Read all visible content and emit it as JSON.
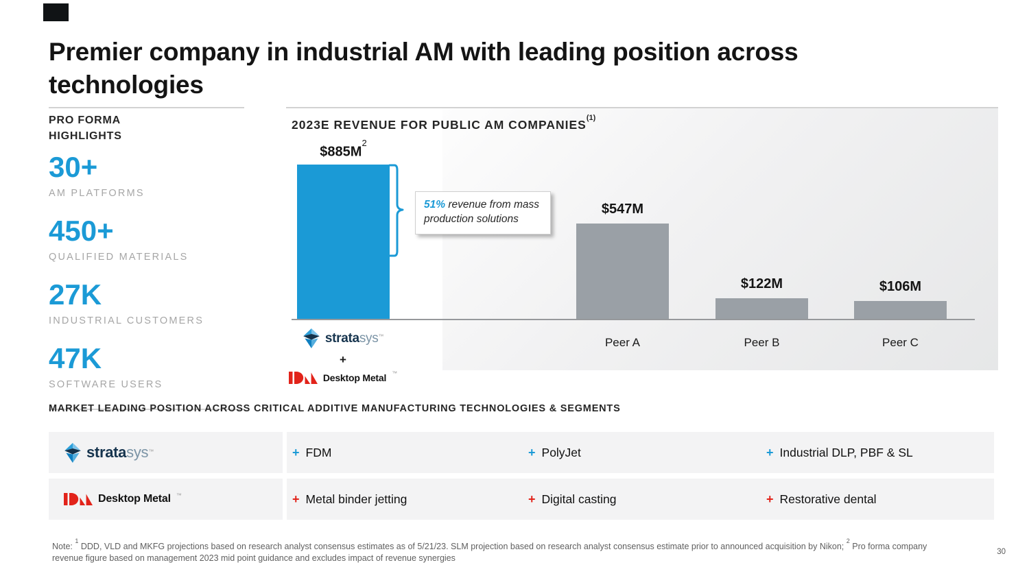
{
  "slide": {
    "title": "Premier company in industrial AM with leading position across technologies",
    "page_number": "30"
  },
  "highlights": {
    "heading": "PRO FORMA HIGHLIGHTS",
    "stats": [
      {
        "value": "30+",
        "label": "AM PLATFORMS"
      },
      {
        "value": "450+",
        "label": "QUALIFIED MATERIALS"
      },
      {
        "value": "27K",
        "label": "INDUSTRIAL CUSTOMERS"
      },
      {
        "value": "47K",
        "label": "SOFTWARE USERS"
      }
    ]
  },
  "chart": {
    "title_sup": "(1)",
    "callout": {
      "highlight": "51%",
      "text": " revenue from mass production solutions"
    }
  },
  "chart_data": {
    "type": "bar",
    "title": "2023E REVENUE FOR PUBLIC AM COMPANIES",
    "categories": [
      "Stratasys + Desktop Metal",
      "Peer A",
      "Peer B",
      "Peer C"
    ],
    "values": [
      885,
      547,
      122,
      106
    ],
    "value_labels": [
      "$885M",
      "$547M",
      "$122M",
      "$106M"
    ],
    "value_label_sups": [
      "2",
      "",
      "",
      ""
    ],
    "bar_colors": [
      "#1b9ad6",
      "#9aa0a6",
      "#9aa0a6",
      "#9aa0a6"
    ],
    "ylabel": "",
    "xlabel": "",
    "ylim": [
      0,
      900
    ],
    "grid": false,
    "annotation": "51% revenue from mass production solutions"
  },
  "logos": {
    "stratasys": {
      "bold": "strata",
      "light": "sys"
    },
    "desktop_metal": "Desktop Metal",
    "tm": "™",
    "plus": "+"
  },
  "section": {
    "heading": "MARKET LEADING POSITION ACROSS CRITICAL ADDITIVE MANUFACTURING TECHNOLOGIES & SEGMENTS"
  },
  "table": {
    "plus": "+",
    "rows": [
      {
        "company": "stratasys",
        "plus_color": "#1b9ad6",
        "items": [
          "FDM",
          "PolyJet",
          "Industrial DLP, PBF & SL"
        ]
      },
      {
        "company": "desktop-metal",
        "plus_color": "#e2231a",
        "items": [
          "Metal binder jetting",
          "Digital casting",
          "Restorative dental"
        ]
      }
    ]
  },
  "footnote": {
    "prefix": "Note:",
    "sup1": "1",
    "part1": " DDD, VLD and MKFG projections based on research analyst consensus estimates as of 5/21/23. SLM projection based on research analyst consensus estimate prior to announced acquisition by Nikon; ",
    "sup2": "2",
    "part2": " Pro forma company revenue figure based on management 2023 mid point guidance and excludes impact of revenue synergies"
  },
  "colors": {
    "accent_blue": "#1b9ad6",
    "accent_red": "#e2231a",
    "bar_gray": "#9aa0a6"
  }
}
